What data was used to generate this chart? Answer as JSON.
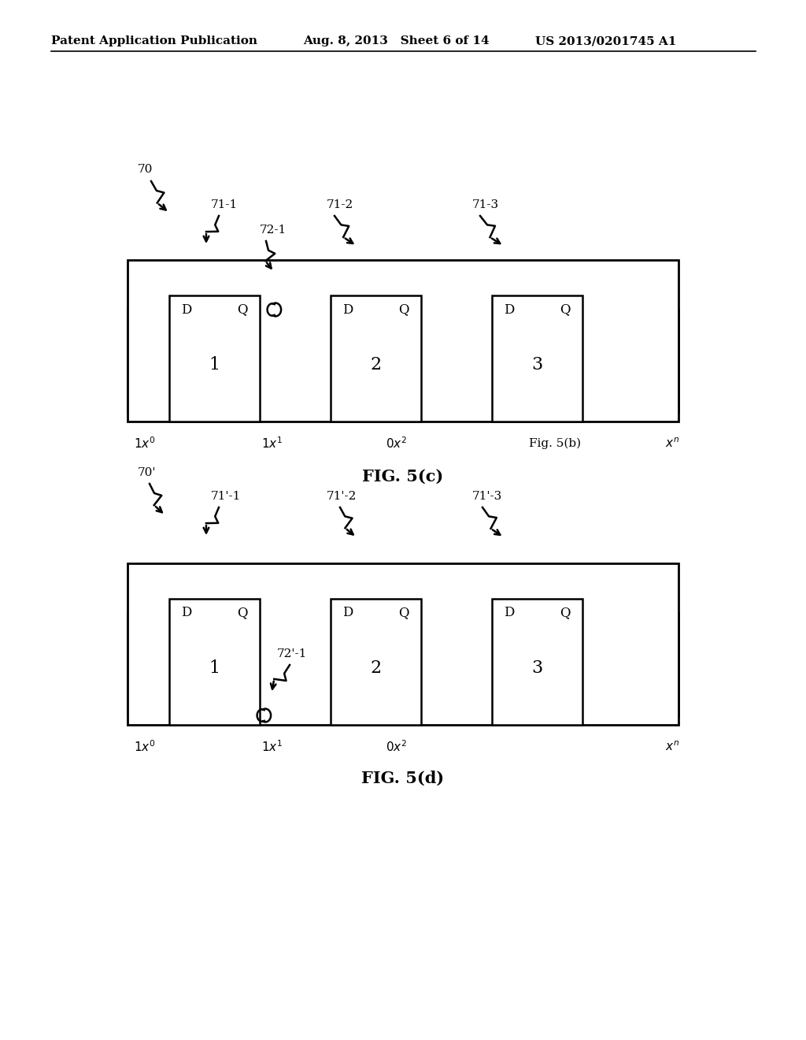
{
  "bg_color": "#ffffff",
  "text_color": "#000000",
  "header_left": "Patent Application Publication",
  "header_mid": "Aug. 8, 2013   Sheet 6 of 14",
  "header_right": "US 2013/0201745 A1",
  "fig_c_label": "FIG. 5(c)",
  "fig_d_label": "FIG. 5(d)"
}
